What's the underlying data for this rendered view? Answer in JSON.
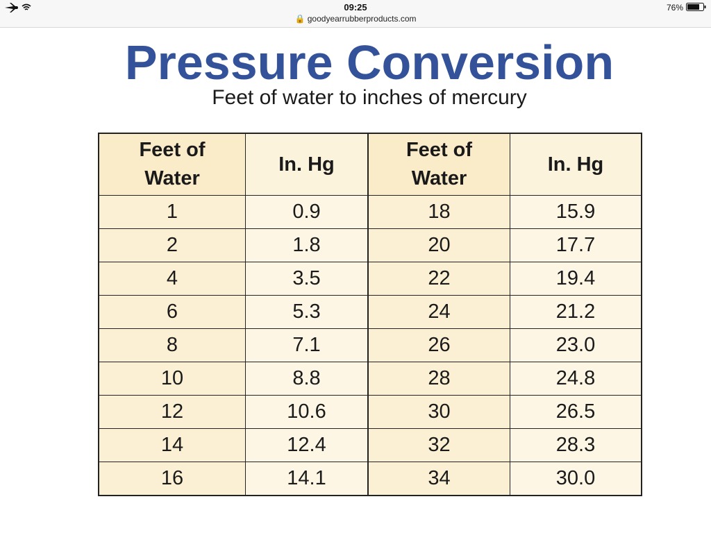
{
  "status_bar": {
    "time": "09:25",
    "url": "goodyearrubberproducts.com",
    "battery": "76%"
  },
  "header": {
    "title": "Pressure Conversion",
    "subtitle": "Feet of water to inches of mercury"
  },
  "table": {
    "headers": [
      "Feet of Water",
      "In. Hg",
      "Feet of Water",
      "In. Hg"
    ],
    "rows": [
      [
        "1",
        "0.9",
        "18",
        "15.9"
      ],
      [
        "2",
        "1.8",
        "20",
        "17.7"
      ],
      [
        "4",
        "3.5",
        "22",
        "19.4"
      ],
      [
        "6",
        "5.3",
        "24",
        "21.2"
      ],
      [
        "8",
        "7.1",
        "26",
        "23.0"
      ],
      [
        "10",
        "8.8",
        "28",
        "24.8"
      ],
      [
        "12",
        "10.6",
        "30",
        "26.5"
      ],
      [
        "14",
        "12.4",
        "32",
        "28.3"
      ],
      [
        "16",
        "14.1",
        "34",
        "30.0"
      ]
    ]
  }
}
